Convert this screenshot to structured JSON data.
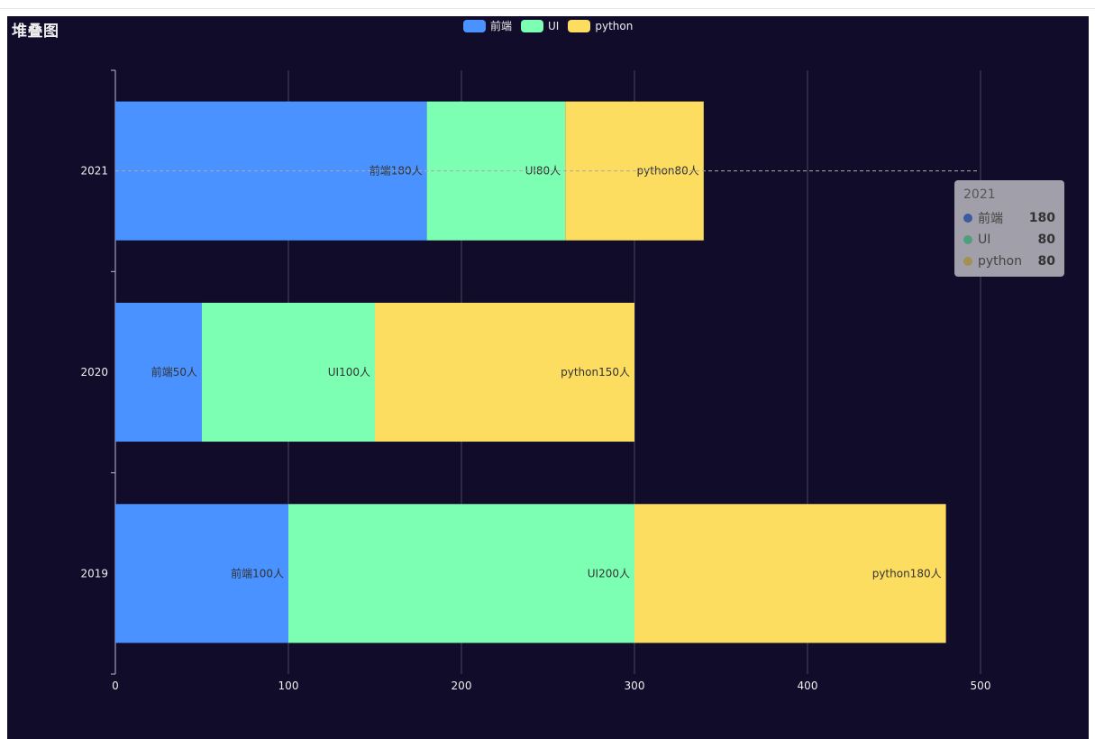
{
  "chart_data": {
    "type": "bar",
    "orientation": "horizontal",
    "stacked": true,
    "title": "堆叠图",
    "categories": [
      "2019",
      "2020",
      "2021"
    ],
    "series": [
      {
        "name": "前端",
        "color": "#4992ff",
        "values": [
          100,
          50,
          180
        ],
        "labels": [
          "前端100人",
          "前端50人",
          "前端180人"
        ]
      },
      {
        "name": "UI",
        "color": "#7cffb2",
        "values": [
          200,
          100,
          80
        ],
        "labels": [
          "UI200人",
          "UI100人",
          "UI80人"
        ]
      },
      {
        "name": "python",
        "color": "#fddd60",
        "values": [
          180,
          150,
          80
        ],
        "labels": [
          "python180人",
          "python150人",
          "python80人"
        ]
      }
    ],
    "xticks": [
      "0",
      "100",
      "200",
      "300",
      "400",
      "500"
    ],
    "xlim": [
      0,
      500
    ],
    "grid": true,
    "legend": "top-center"
  },
  "tooltip": {
    "title": "2021",
    "rows": [
      {
        "name": "前端",
        "value": "180",
        "color": "#3d5aa0"
      },
      {
        "name": "UI",
        "value": "80",
        "color": "#4f9e7c"
      },
      {
        "name": "python",
        "value": "80",
        "color": "#a49050"
      }
    ]
  }
}
